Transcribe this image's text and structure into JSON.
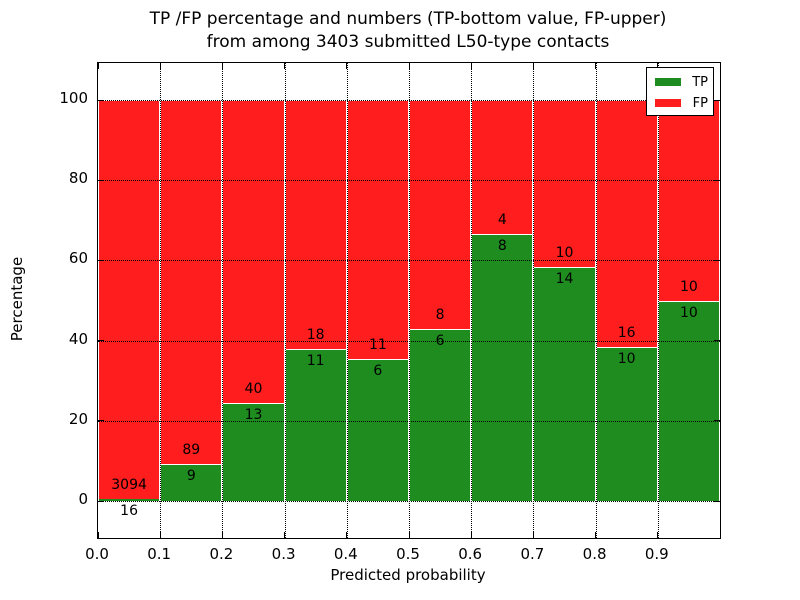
{
  "title": {
    "line1": "TP /FP percentage and numbers (TP-bottom value, FP-upper)",
    "line2": "from among 3403 submitted L50-type contacts"
  },
  "x_axis": {
    "label": "Predicted probability",
    "ticks": [
      "0.0",
      "0.1",
      "0.2",
      "0.3",
      "0.4",
      "0.5",
      "0.6",
      "0.7",
      "0.8",
      "0.9"
    ]
  },
  "y_axis": {
    "label": "Percentage",
    "ticks": [
      0,
      20,
      40,
      60,
      80,
      100
    ]
  },
  "legend": {
    "items": [
      {
        "label": "TP",
        "color": "#1e8c1e"
      },
      {
        "label": "FP",
        "color": "#ff1d1d"
      }
    ]
  },
  "colors": {
    "tp_green": "#1e8c1e",
    "fp_red": "#ff1d1d",
    "bar_edge": "#ffffff",
    "grid": "#000000"
  },
  "chart_data": {
    "type": "bar",
    "stacked": true,
    "normalized_to_percent": true,
    "title": "TP /FP percentage and numbers (TP-bottom value, FP-upper) from among 3403 submitted L50-type contacts",
    "xlabel": "Predicted probability",
    "ylabel": "Percentage",
    "xlim": [
      0.0,
      1.0
    ],
    "ylim": [
      -9.2,
      109.2
    ],
    "grid": true,
    "legend_position": "upper right",
    "bin_width": 0.1,
    "bin_starts": [
      0.0,
      0.1,
      0.2,
      0.3,
      0.4,
      0.5,
      0.6,
      0.7,
      0.8,
      0.9
    ],
    "total_contacts": 3403,
    "series": [
      {
        "name": "TP",
        "color": "#1e8c1e",
        "counts": [
          16,
          9,
          13,
          11,
          6,
          6,
          8,
          14,
          10,
          10
        ],
        "pct": [
          0.51,
          9.18,
          24.53,
          37.93,
          35.29,
          42.86,
          66.67,
          58.33,
          38.46,
          50.0
        ]
      },
      {
        "name": "FP",
        "color": "#ff1d1d",
        "counts": [
          3094,
          89,
          40,
          18,
          11,
          8,
          4,
          10,
          16,
          10
        ],
        "pct": [
          99.49,
          90.82,
          75.47,
          62.07,
          64.71,
          57.14,
          33.33,
          41.67,
          61.54,
          50.0
        ]
      }
    ]
  }
}
